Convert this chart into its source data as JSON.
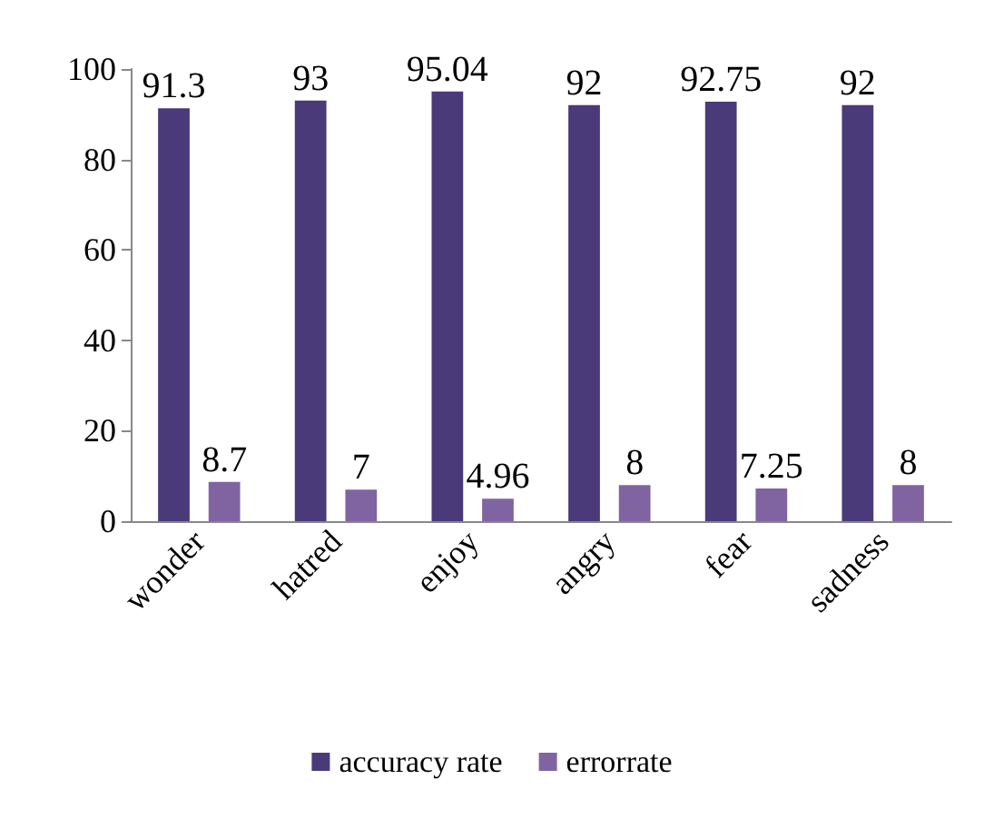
{
  "chart_data": {
    "type": "bar",
    "categories": [
      "wonder",
      "hatred",
      "enjoy",
      "angry",
      "fear",
      "sadness"
    ],
    "series": [
      {
        "name": "accuracy rate",
        "color": "#4b3a7a",
        "values": [
          91.3,
          93,
          95.04,
          92,
          92.75,
          92
        ]
      },
      {
        "name": "errorrate",
        "color": "#8064a2",
        "values": [
          8.7,
          7,
          4.96,
          8,
          7.25,
          8
        ]
      }
    ],
    "ylim": [
      0,
      100
    ],
    "yticks": [
      0,
      20,
      40,
      60,
      80,
      100
    ],
    "grid": false,
    "legend": "bottom",
    "data_labels": true
  }
}
